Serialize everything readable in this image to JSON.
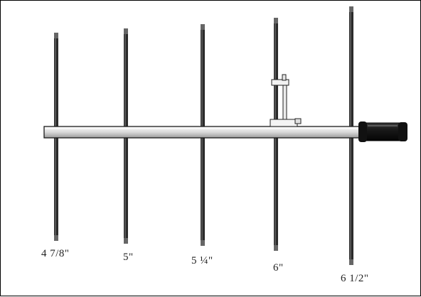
{
  "diagram": {
    "element_lengths": [
      {
        "label": "4 7/8\""
      },
      {
        "label": "5\""
      },
      {
        "label": "5 ¼\""
      },
      {
        "label": "6\""
      },
      {
        "label": "6 1/2\""
      }
    ]
  }
}
